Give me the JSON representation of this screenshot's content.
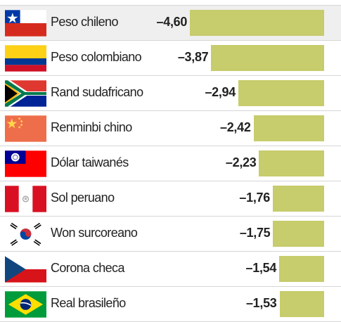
{
  "chart_data": {
    "type": "bar",
    "orientation": "horizontal",
    "categories": [
      "Peso chileno",
      "Peso colombiano",
      "Rand sudafricano",
      "Renminbi chino",
      "Dólar taiwanés",
      "Sol peruano",
      "Won surcoreano",
      "Corona checa",
      "Real brasileño"
    ],
    "values": [
      -4.6,
      -3.87,
      -2.94,
      -2.42,
      -2.23,
      -1.76,
      -1.75,
      -1.54,
      -1.53
    ],
    "value_labels": [
      "–4,60",
      "–3,87",
      "–2,94",
      "–2,42",
      "–2,23",
      "–1,76",
      "–1,75",
      "–1,54",
      "–1,53"
    ],
    "flags": [
      "chile-flag-icon",
      "colombia-flag-icon",
      "south-africa-flag-icon",
      "china-flag-icon",
      "taiwan-flag-icon",
      "peru-flag-icon",
      "south-korea-flag-icon",
      "czech-republic-flag-icon",
      "brazil-flag-icon"
    ],
    "highlighted_index": 0,
    "bar_color": "#c7cc6c",
    "title": "",
    "xlabel": "",
    "ylabel": "",
    "grid": false,
    "legend": "none"
  }
}
